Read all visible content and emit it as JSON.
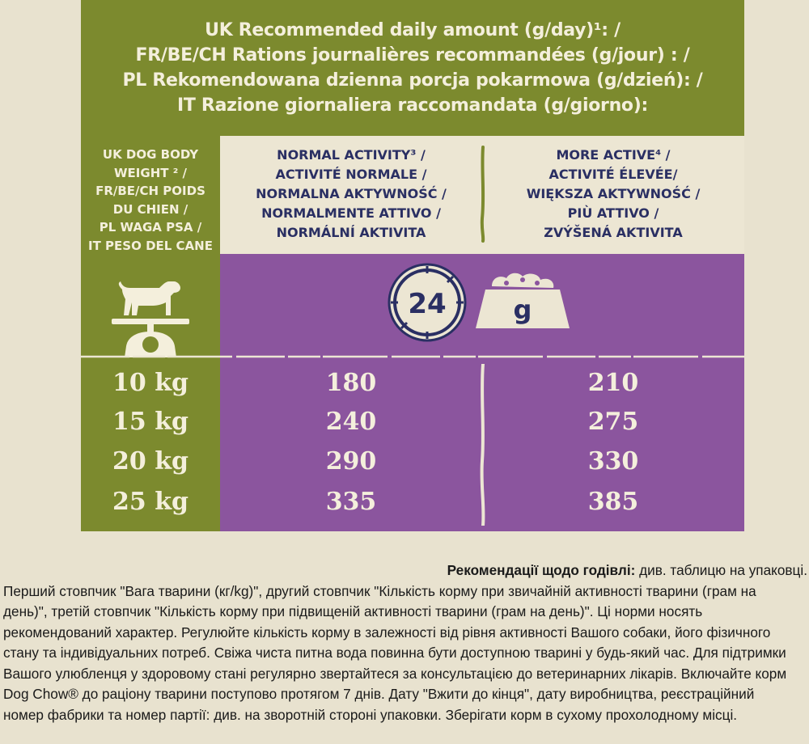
{
  "title_lines": [
    "UK Recommended daily amount (g/day)¹: /",
    "FR/BE/CH Rations journalières recommandées (g/jour) : /",
    "PL Rekomendowana dzienna porcja pokarmowa (g/dzień): /",
    "IT Razione giornaliera raccomandata (g/giorno):"
  ],
  "body_weight_label_lines": [
    "UK DOG BODY",
    "WEIGHT ² /",
    "FR/BE/CH POIDS",
    "DU CHIEN /",
    "PL WAGA PSA /",
    "IT PESO DEL CANE"
  ],
  "normal_activity_lines": [
    "NORMAL ACTIVITY³ /",
    "ACTIVITÉ NORMALE /",
    "NORMALNA AKTYWNOŚĆ /",
    "NORMALMENTE ATTIVO /",
    "NORMÁLNÍ AKTIVITA"
  ],
  "more_active_lines": [
    "MORE ACTIVE⁴ /",
    "ACTIVITÉ ÉLEVÉE/",
    "WIĘKSZA AKTYWNOŚĆ /",
    "PIÙ ATTIVO /",
    "ZVÝŠENÁ AKTIVITA"
  ],
  "clock_text": "24",
  "bowl_text": "g",
  "icons": [
    "dog-icon",
    "scale-icon",
    "clock-24-icon",
    "food-bowl-icon"
  ],
  "rows": [
    {
      "weight": "10 kg",
      "normal": "180",
      "more": "210"
    },
    {
      "weight": "15 kg",
      "normal": "240",
      "more": "275"
    },
    {
      "weight": "20 kg",
      "normal": "290",
      "more": "330"
    },
    {
      "weight": "25 kg",
      "normal": "335",
      "more": "385"
    }
  ],
  "footer": {
    "heading_bold": "Рекомендації щодо годівлі:",
    "heading_rest": " див. таблицю на упаковці.",
    "lines": [
      "Перший стовпчик \"Вага тварини (кг/kg)\", другий стовпчик \"Кількість корму при звичайній активності тварини (грам на",
      "день)\", третій стовпчик \"Кількість корму при підвищеній активності тварини (грам на день)\". Ці норми носять",
      "рекомендований характер. Регулюйте кількість корму в залежності від рівня активності Вашого собаки, його фізичного",
      "стану та індивідуальних потреб. Свіжа чиста питна вода повинна бути доступною тварині у будь-який час. Для підтримки",
      "Вашого улюбленця у здоровому стані регулярно звертайтеся за консультацією до ветеринарних лікарів. Включайте корм",
      "Dog Chow® до раціону тварини поступово протягом 7 днів. Дату \"Вжити до кінця\", дату виробництва, реєстраційний",
      "номер фабрики та номер партії: див. на зворотній стороні упаковки. Зберігати корм в сухому прохолодному місці."
    ]
  },
  "colors": {
    "green": "#7c8a2e",
    "purple": "#8b559e",
    "cream": "#ece6d3",
    "navy": "#2a2f63",
    "background": "#e8e2cf"
  }
}
